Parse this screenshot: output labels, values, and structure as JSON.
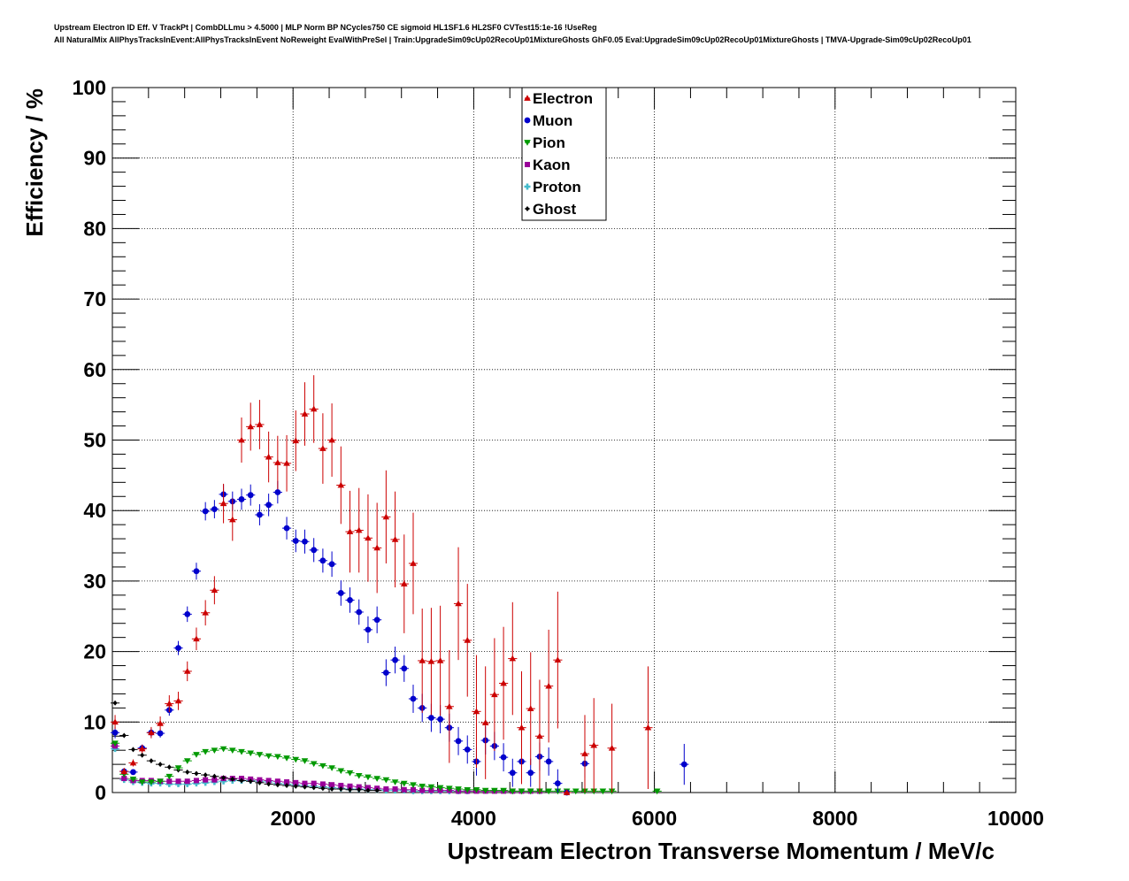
{
  "header": {
    "line1": "Upstream Electron ID Eff. V TrackPt | CombDLLmu > 4.5000 | MLP Norm BP NCycles750 CE sigmoid HL1SF1.6 HL2SF0 CVTest15:1e-16 !UseReg",
    "line2": "All NaturalMix AllPhysTracksInEvent:AllPhysTracksInEvent NoReweight EvalWithPreSel | Train:UpgradeSim09cUp02RecoUp01MixtureGhosts GhF0.05 Eval:UpgradeSim09cUp02RecoUp01MixtureGhosts | TMVA-Upgrade-Sim09cUp02RecoUp01"
  },
  "chart_data": {
    "type": "scatter",
    "xlabel": "Upstream Electron Transverse Momentum / MeV/c",
    "ylabel": "Efficiency / %",
    "xlim": [
      0,
      10000
    ],
    "ylim": [
      0,
      100
    ],
    "x_ticks": [
      "2000",
      "4000",
      "6000",
      "8000",
      "10000"
    ],
    "y_ticks": [
      "0",
      "10",
      "20",
      "30",
      "40",
      "50",
      "60",
      "70",
      "80",
      "90",
      "100"
    ],
    "grid": true,
    "legend_position": "top-center",
    "series": [
      {
        "name": "Electron",
        "color": "#cc0000",
        "marker": "triangle-up",
        "x": [
          30,
          130,
          230,
          330,
          430,
          530,
          630,
          730,
          830,
          930,
          1030,
          1130,
          1230,
          1330,
          1430,
          1530,
          1630,
          1730,
          1830,
          1930,
          2030,
          2130,
          2230,
          2330,
          2430,
          2530,
          2630,
          2730,
          2830,
          2930,
          3030,
          3130,
          3230,
          3330,
          3430,
          3530,
          3630,
          3730,
          3830,
          3930,
          4030,
          4130,
          4230,
          4330,
          4430,
          4530,
          4630,
          4730,
          4830,
          4930,
          5030,
          5230,
          5330,
          5530,
          5930
        ],
        "y": [
          10.0,
          3.0,
          4.2,
          6.2,
          8.5,
          9.8,
          12.6,
          13.0,
          17.2,
          21.8,
          25.5,
          28.7,
          41.0,
          38.7,
          50.0,
          51.9,
          52.2,
          47.6,
          46.8,
          46.7,
          49.9,
          53.7,
          54.4,
          48.8,
          50.0,
          43.6,
          37.0,
          37.2,
          36.1,
          34.7,
          39.1,
          35.9,
          29.6,
          32.5,
          18.7,
          18.6,
          18.7,
          12.2,
          26.8,
          21.6,
          11.5,
          9.9,
          13.9,
          15.5,
          19.0,
          9.2,
          11.9,
          8.0,
          15.1,
          18.8,
          0.0,
          5.5,
          6.7,
          6.3,
          9.2
        ],
        "err": [
          1.0,
          0.5,
          0.5,
          0.6,
          0.8,
          1.0,
          1.2,
          1.3,
          1.4,
          1.6,
          1.8,
          2.0,
          2.8,
          3.0,
          3.2,
          3.4,
          3.5,
          3.6,
          3.8,
          4.0,
          4.3,
          4.5,
          4.8,
          5.0,
          5.2,
          5.5,
          5.8,
          6.0,
          6.2,
          6.4,
          6.6,
          6.8,
          7.0,
          7.2,
          7.4,
          7.6,
          7.8,
          8.0,
          8.0,
          8.0,
          8.0,
          8.0,
          8.0,
          8.0,
          8.0,
          8.0,
          8.0,
          8.0,
          8.0,
          9.7,
          0.0,
          5.5,
          6.7,
          6.3,
          8.7
        ]
      },
      {
        "name": "Muon",
        "color": "#0000cc",
        "marker": "circle",
        "x": [
          30,
          130,
          230,
          330,
          430,
          530,
          630,
          730,
          830,
          930,
          1030,
          1130,
          1230,
          1330,
          1430,
          1530,
          1630,
          1730,
          1830,
          1930,
          2030,
          2130,
          2230,
          2330,
          2430,
          2530,
          2630,
          2730,
          2830,
          2930,
          3030,
          3130,
          3230,
          3330,
          3430,
          3530,
          3630,
          3730,
          3830,
          3930,
          4030,
          4130,
          4230,
          4330,
          4430,
          4530,
          4630,
          4730,
          4830,
          4930,
          5030,
          5230,
          6330
        ],
        "y": [
          8.5,
          3.0,
          2.9,
          6.3,
          8.5,
          8.4,
          11.7,
          20.5,
          25.3,
          31.4,
          39.9,
          40.2,
          42.3,
          41.3,
          41.6,
          42.2,
          39.4,
          40.8,
          42.6,
          37.5,
          35.7,
          35.6,
          34.4,
          32.9,
          32.4,
          28.3,
          27.3,
          25.6,
          23.1,
          24.5,
          17.0,
          18.8,
          17.6,
          13.3,
          12.0,
          10.6,
          10.4,
          9.2,
          7.3,
          6.1,
          4.4,
          7.4,
          6.6,
          5.0,
          2.8,
          4.4,
          2.8,
          5.1,
          4.4,
          1.3,
          0.0,
          4.1,
          4.0
        ],
        "err": [
          0.8,
          0.3,
          0.3,
          0.5,
          0.6,
          0.6,
          0.8,
          1.0,
          1.1,
          1.2,
          1.3,
          1.3,
          1.4,
          1.4,
          1.5,
          1.5,
          1.5,
          1.6,
          1.6,
          1.6,
          1.6,
          1.7,
          1.7,
          1.7,
          1.8,
          1.8,
          1.8,
          1.8,
          1.9,
          1.9,
          1.9,
          1.9,
          1.9,
          2.0,
          2.0,
          2.0,
          2.0,
          2.0,
          2.0,
          2.0,
          2.0,
          2.0,
          2.0,
          2.0,
          2.0,
          2.0,
          2.0,
          2.0,
          2.0,
          2.0,
          0.0,
          2.0,
          2.9
        ]
      },
      {
        "name": "Pion",
        "color": "#009900",
        "marker": "triangle-down",
        "x": [
          30,
          130,
          230,
          330,
          430,
          530,
          630,
          730,
          830,
          930,
          1030,
          1130,
          1230,
          1330,
          1430,
          1530,
          1630,
          1730,
          1830,
          1930,
          2030,
          2130,
          2230,
          2330,
          2430,
          2530,
          2630,
          2730,
          2830,
          2930,
          3030,
          3130,
          3230,
          3330,
          3430,
          3530,
          3630,
          3730,
          3830,
          3930,
          4030,
          4130,
          4230,
          4330,
          4430,
          4530,
          4630,
          4730,
          4830,
          4930,
          5030,
          5130,
          5230,
          5330,
          5430,
          5530,
          6030
        ],
        "y": [
          7.0,
          2.6,
          1.9,
          1.5,
          1.5,
          1.6,
          2.3,
          3.5,
          4.5,
          5.4,
          5.8,
          6.0,
          6.2,
          6.0,
          5.8,
          5.6,
          5.4,
          5.2,
          5.1,
          4.9,
          4.7,
          4.5,
          4.1,
          3.8,
          3.5,
          3.1,
          2.8,
          2.4,
          2.2,
          2.0,
          1.8,
          1.5,
          1.3,
          1.1,
          0.9,
          0.8,
          0.7,
          0.6,
          0.5,
          0.4,
          0.4,
          0.3,
          0.3,
          0.3,
          0.2,
          0.2,
          0.2,
          0.2,
          0.2,
          0.2,
          0.2,
          0.2,
          0.2,
          0.2,
          0.2,
          0.2,
          0.2
        ]
      },
      {
        "name": "Kaon",
        "color": "#990099",
        "marker": "square",
        "x": [
          30,
          130,
          230,
          330,
          430,
          530,
          630,
          730,
          830,
          930,
          1030,
          1130,
          1230,
          1330,
          1430,
          1530,
          1630,
          1730,
          1830,
          1930,
          2030,
          2130,
          2230,
          2330,
          2430,
          2530,
          2630,
          2730,
          2830,
          2930,
          3030,
          3130,
          3230,
          3330,
          3430,
          3530,
          3630,
          3730,
          3830,
          3930,
          4030,
          4130,
          4230,
          4330,
          4430,
          4530,
          4630,
          4730
        ],
        "y": [
          6.6,
          2.0,
          1.7,
          1.7,
          1.7,
          1.6,
          1.6,
          1.6,
          1.6,
          1.7,
          1.8,
          1.8,
          2.0,
          2.0,
          2.0,
          1.9,
          1.8,
          1.7,
          1.6,
          1.5,
          1.4,
          1.3,
          1.3,
          1.2,
          1.1,
          1.0,
          0.9,
          0.8,
          0.7,
          0.6,
          0.5,
          0.5,
          0.4,
          0.4,
          0.3,
          0.3,
          0.3,
          0.3,
          0.2,
          0.2,
          0.2,
          0.2,
          0.2,
          0.2,
          0.2,
          0.2,
          0.2,
          0.2
        ]
      },
      {
        "name": "Proton",
        "color": "#44bbcc",
        "marker": "cross",
        "x": [
          30,
          130,
          230,
          330,
          430,
          530,
          630,
          730,
          830,
          930,
          1030,
          1130,
          1230,
          1330,
          1430,
          1530,
          1630,
          1730,
          1830,
          1930,
          2030,
          2130,
          2230,
          2330,
          2430,
          2530,
          2630,
          2730,
          2830,
          2930,
          3030,
          3130,
          3230,
          3330,
          3430,
          3530,
          3630,
          3730,
          3830,
          3930
        ],
        "y": [
          6.2,
          1.8,
          1.5,
          1.4,
          1.3,
          1.3,
          1.2,
          1.2,
          1.2,
          1.3,
          1.4,
          1.5,
          1.6,
          1.7,
          1.7,
          1.7,
          1.6,
          1.5,
          1.3,
          1.2,
          1.1,
          1.0,
          0.9,
          0.8,
          0.7,
          0.6,
          0.5,
          0.5,
          0.4,
          0.4,
          0.3,
          0.3,
          0.3,
          0.2,
          0.2,
          0.2,
          0.2,
          0.2,
          0.2,
          0.2
        ]
      },
      {
        "name": "Ghost",
        "color": "#000000",
        "marker": "diamond",
        "x": [
          30,
          130,
          230,
          330,
          430,
          530,
          630,
          730,
          830,
          930,
          1030,
          1130,
          1230,
          1330,
          1430,
          1530,
          1630,
          1730,
          1830,
          1930,
          2030,
          2130,
          2230,
          2330,
          2430,
          2530,
          2630,
          2730,
          2830,
          2930
        ],
        "y": [
          12.7,
          8.1,
          6.1,
          5.3,
          4.5,
          4.0,
          3.6,
          3.2,
          2.9,
          2.7,
          2.5,
          2.3,
          2.1,
          1.9,
          1.7,
          1.6,
          1.4,
          1.2,
          1.1,
          1.0,
          0.9,
          0.8,
          0.7,
          0.6,
          0.5,
          0.5,
          0.4,
          0.4,
          0.3,
          0.3
        ]
      }
    ]
  }
}
